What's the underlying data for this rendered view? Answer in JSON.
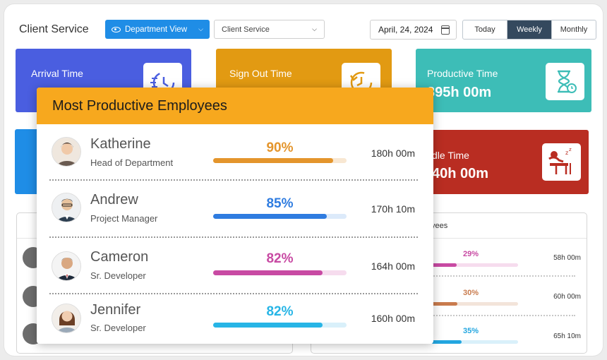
{
  "header": {
    "title": "Client Service",
    "view_button": "Department View",
    "select_value": "Client Service",
    "date": "April, 24, 2024",
    "range_tabs": [
      {
        "label": "Today",
        "active": false
      },
      {
        "label": "Weekly",
        "active": true
      },
      {
        "label": "Monthly",
        "active": false
      }
    ]
  },
  "cards": {
    "arrival": {
      "label": "Arrival Time",
      "color": "#4a5ee0",
      "icon": "clock-arrow-icon"
    },
    "signout": {
      "label": "Sign Out  Time",
      "color": "#e29a12",
      "icon": "clock-back-icon"
    },
    "productive": {
      "label": "Productive Time",
      "value": "395h 00m",
      "color": "#3dbdb7",
      "icon": "hourglass-icon"
    },
    "blue": {
      "color": "#1f8de6"
    },
    "idle": {
      "label": "dle Time",
      "value": "40h 00m",
      "color": "#b92d22",
      "icon": "idle-desk-icon"
    }
  },
  "background_panel": {
    "head": "yees",
    "rows": [
      {
        "pct": "29%",
        "time": "58h 00m",
        "color": "#c84aa3",
        "fraction": 0.29
      },
      {
        "pct": "30%",
        "time": "60h 00m",
        "color": "#c97b4d",
        "fraction": 0.3
      },
      {
        "pct": "35%",
        "time": "65h 10m",
        "color": "#23a6e0",
        "fraction": 0.35
      }
    ]
  },
  "modal": {
    "title": "Most Productive Employees",
    "employees": [
      {
        "name": "Katherine",
        "role": "Head of Department",
        "pct": "90%",
        "fraction": 0.9,
        "time": "180h 00m",
        "color": "#e4952c",
        "track": "#f8e7d2"
      },
      {
        "name": "Andrew",
        "role": "Project Manager",
        "pct": "85%",
        "fraction": 0.85,
        "time": "170h 10m",
        "color": "#2f7ce0",
        "track": "#dceafa"
      },
      {
        "name": "Cameron",
        "role": "Sr. Developer",
        "pct": "82%",
        "fraction": 0.82,
        "time": "164h 00m",
        "color": "#c84aa3",
        "track": "#f6dcee"
      },
      {
        "name": "Jennifer",
        "role": "Sr. Developer",
        "pct": "82%",
        "fraction": 0.82,
        "time": "160h 00m",
        "color": "#27b5e6",
        "track": "#d9f0fa"
      }
    ]
  }
}
